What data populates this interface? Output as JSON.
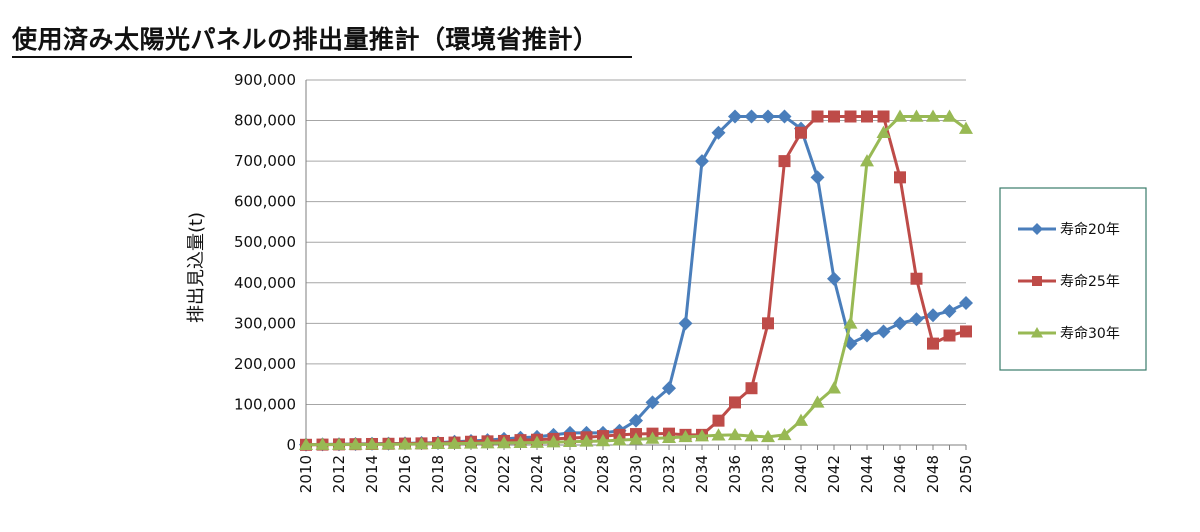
{
  "title": "使用済み太陽光パネルの排出量推計（環境省推計）",
  "chart_data": {
    "type": "line",
    "title": "使用済み太陽光パネルの排出量推計（環境省推計）",
    "ylabel": "排出見込量(t)",
    "xlabel": "",
    "ylim": [
      0,
      900000
    ],
    "yticks": [
      0,
      100000,
      200000,
      300000,
      400000,
      500000,
      600000,
      700000,
      800000,
      900000
    ],
    "ytick_labels": [
      "0",
      "100,000",
      "200,000",
      "300,000",
      "400,000",
      "500,000",
      "600,000",
      "700,000",
      "800,000",
      "900,000"
    ],
    "x": [
      2010,
      2011,
      2012,
      2013,
      2014,
      2015,
      2016,
      2017,
      2018,
      2019,
      2020,
      2021,
      2022,
      2023,
      2024,
      2025,
      2026,
      2027,
      2028,
      2029,
      2030,
      2031,
      2032,
      2033,
      2034,
      2035,
      2036,
      2037,
      2038,
      2039,
      2040,
      2041,
      2042,
      2043,
      2044,
      2045,
      2046,
      2047,
      2048,
      2049,
      2050
    ],
    "xtick_labels": [
      "2010",
      "2012",
      "2014",
      "2016",
      "2018",
      "2020",
      "2022",
      "2024",
      "2026",
      "2028",
      "2030",
      "2032",
      "2034",
      "2036",
      "2038",
      "2040",
      "2042",
      "2044",
      "2046",
      "2048",
      "2050"
    ],
    "grid": true,
    "legend_position": "right",
    "series": [
      {
        "name": "寿命20年",
        "color": "#4A7EBB",
        "marker": "diamond",
        "values": [
          1000,
          1500,
          2000,
          2500,
          3000,
          3500,
          4000,
          5000,
          6000,
          8000,
          10000,
          12000,
          15000,
          18000,
          20000,
          25000,
          30000,
          30000,
          30000,
          35000,
          60000,
          105000,
          140000,
          300000,
          700000,
          770000,
          810000,
          810000,
          810000,
          810000,
          780000,
          660000,
          410000,
          250000,
          270000,
          280000,
          300000,
          310000,
          320000,
          330000,
          350000
        ]
      },
      {
        "name": "寿命25年",
        "color": "#BE4B48",
        "marker": "square",
        "values": [
          500,
          1000,
          1500,
          2000,
          2500,
          3000,
          3500,
          4000,
          5000,
          6000,
          8000,
          9000,
          10000,
          12000,
          13000,
          15000,
          17000,
          19000,
          22000,
          25000,
          27000,
          28000,
          28000,
          25000,
          25000,
          60000,
          105000,
          140000,
          300000,
          700000,
          770000,
          810000,
          810000,
          810000,
          810000,
          810000,
          660000,
          410000,
          250000,
          270000,
          280000
        ]
      },
      {
        "name": "寿命30年",
        "color": "#98B954",
        "marker": "triangle",
        "values": [
          500,
          800,
          1000,
          1200,
          1500,
          1800,
          2000,
          2500,
          3000,
          3500,
          4000,
          4500,
          5000,
          5500,
          6000,
          7000,
          8000,
          9000,
          10000,
          12000,
          14000,
          16000,
          18000,
          20000,
          22000,
          24000,
          25000,
          22000,
          20000,
          25000,
          60000,
          105000,
          140000,
          300000,
          700000,
          770000,
          810000,
          810000,
          810000,
          810000,
          780000
        ]
      }
    ]
  }
}
